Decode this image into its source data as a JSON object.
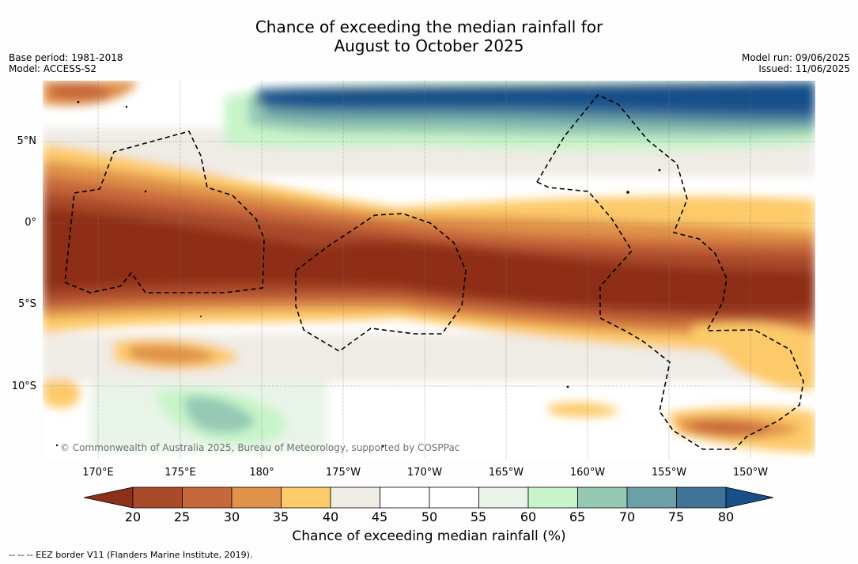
{
  "title_line1": "Chance of exceeding the median rainfall for",
  "title_line2": "August to October 2025",
  "left_meta": [
    "Base period: 1981-2018",
    "Model: ACCESS-S2"
  ],
  "right_meta": [
    "Model run: 09/06/2025",
    "Issued: 11/06/2025"
  ],
  "lat_labels": [
    "5°N",
    "0°",
    "5°S",
    "10°S"
  ],
  "lon_labels": [
    "170°E",
    "175°E",
    "180°",
    "175°W",
    "170°W",
    "165°W",
    "160°W",
    "155°W",
    "150°W"
  ],
  "copyright": "© Commonwealth of Australia 2025, Bureau of Meteorology, supported by COSPPac",
  "colorbar": {
    "ticks": [
      "20",
      "25",
      "30",
      "35",
      "40",
      "45",
      "50",
      "55",
      "60",
      "65",
      "70",
      "75",
      "80"
    ],
    "colors": [
      "#8e2f19",
      "#a94a29",
      "#c7683a",
      "#e0924a",
      "#fdca6a",
      "#efebe5",
      "#ffffff",
      "#ffffff",
      "#e9f4e8",
      "#c7f4c9",
      "#95c9b4",
      "#6aa0a6",
      "#3f7397",
      "#174f8a"
    ],
    "label": "Chance of exceeding median rainfall (%)"
  },
  "legend_text": "--  --  -- EEZ border V11 (Flanders Marine Institute, 2019)."
}
